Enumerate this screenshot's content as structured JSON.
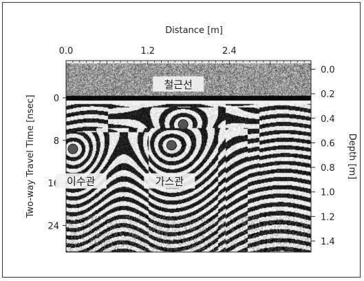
{
  "chart_data": {
    "type": "heatmap",
    "title": "",
    "top_axis": {
      "label": "Distance",
      "unit": "[m]",
      "range": [
        0.0,
        3.6
      ],
      "ticks": [
        {
          "value": 0.0,
          "label": "0.0"
        },
        {
          "value": 1.2,
          "label": "1.2"
        },
        {
          "value": 2.4,
          "label": "2.4"
        }
      ]
    },
    "left_axis": {
      "label": "Two-way Travel Time",
      "unit": "[nsec]",
      "range": [
        -7,
        29
      ],
      "ticks": [
        {
          "value": 0,
          "label": "0"
        },
        {
          "value": 8,
          "label": "8"
        },
        {
          "value": 16,
          "label": "16"
        },
        {
          "value": 24,
          "label": "24"
        }
      ]
    },
    "right_axis": {
      "label": "Depth",
      "unit": "[m]",
      "range": [
        -0.07,
        1.49
      ],
      "ticks": [
        {
          "value": 0.0,
          "label": "0.0"
        },
        {
          "value": 0.2,
          "label": "0.2"
        },
        {
          "value": 0.4,
          "label": "0.4"
        },
        {
          "value": 0.6,
          "label": "0.6"
        },
        {
          "value": 0.8,
          "label": "0.8"
        },
        {
          "value": 1.0,
          "label": "1.0"
        },
        {
          "value": 1.2,
          "label": "1.2"
        },
        {
          "value": 1.4,
          "label": "1.4"
        }
      ]
    },
    "annotations": [
      {
        "text": "철근선",
        "distance_m": 1.65,
        "depth_m": 0.12
      },
      {
        "text": "이수관",
        "distance_m": 0.22,
        "depth_m": 0.91
      },
      {
        "text": "가스관",
        "distance_m": 1.52,
        "depth_m": 0.91
      }
    ],
    "targets": [
      {
        "distance_m": 1.72,
        "depth_m": 0.45
      },
      {
        "distance_m": 1.55,
        "depth_m": 0.62
      },
      {
        "distance_m": 0.1,
        "depth_m": 0.65
      }
    ],
    "colormap": "grayscale",
    "grid": false
  }
}
